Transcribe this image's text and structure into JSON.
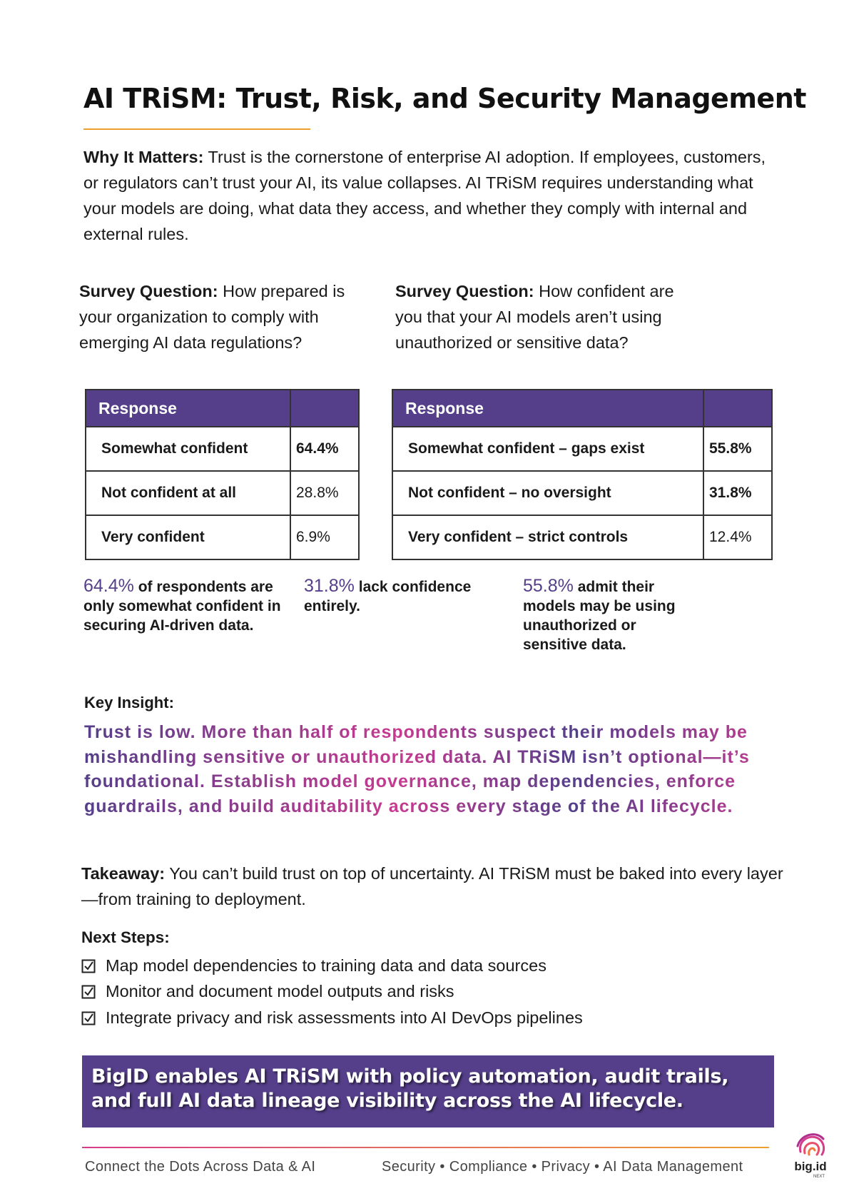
{
  "title": "AI TRiSM: Trust, Risk, and Security Management",
  "why": {
    "label": "Why It Matters:",
    "text": "Trust is the cornerstone of enterprise AI adoption. If employees, customers, or regulators can’t trust your AI, its value collapses. AI TRiSM requires understanding what your models are doing, what data they access, and whether they comply with internal and external rules."
  },
  "surveys": [
    {
      "label": "Survey Question:",
      "question": "How prepared is your organization to comply with emerging AI data regulations?",
      "header": "Response",
      "rows": [
        [
          "Somewhat confident",
          "64.4%"
        ],
        [
          "Not confident at all",
          "28.8%"
        ],
        [
          "Very confident",
          "6.9%"
        ]
      ]
    },
    {
      "label": "Survey Question:",
      "question": "How confident are you that your AI models aren’t using unauthorized or sensitive data?",
      "header": "Response",
      "rows": [
        [
          "Somewhat confident – gaps exist",
          "55.8%"
        ],
        [
          "Not confident – no oversight",
          "31.8%"
        ],
        [
          "Very confident – strict controls",
          "12.4%"
        ]
      ]
    }
  ],
  "stats": [
    {
      "value": "64.4%",
      "text": "of respondents are only somewhat confident in securing AI-driven data."
    },
    {
      "value": "31.8%",
      "text": "lack confidence entirely."
    },
    {
      "value": "55.8%",
      "text": "admit their models may be using unauthorized or sensitive data."
    }
  ],
  "insight": {
    "label": "Key Insight:",
    "text": "Trust is low. More than half of respondents suspect their models may be mishandling sensitive or unauthorized data.  AI TRiSM isn’t optional—it’s foundational. Establish model governance, map dependencies, enforce guardrails, and build auditability across every stage of the AI lifecycle."
  },
  "takeaway": {
    "label": "Takeaway:",
    "text": "You can’t build trust on top of uncertainty. AI TRiSM must be baked into every layer—from training to deployment."
  },
  "next_steps": {
    "label": "Next Steps:",
    "items": [
      "Map model dependencies to training data and data sources",
      "Monitor and document model outputs and risks",
      "Integrate privacy and risk assessments into AI DevOps pipelines"
    ]
  },
  "banner": "BigID enables AI TRiSM with policy automation, audit trails, and full AI data lineage visibility across the AI lifecycle.",
  "footer": {
    "left": "Connect the Dots Across Data & AI",
    "right": "Security • Compliance • Privacy • AI Data Management",
    "logo": "big.id",
    "logo_sub": "NEXT"
  }
}
